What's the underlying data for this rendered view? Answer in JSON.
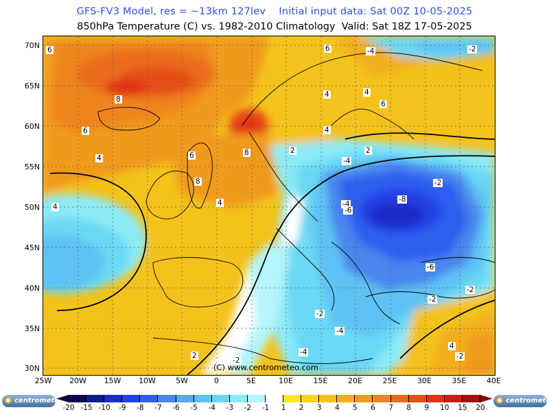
{
  "header": {
    "line1": "GFS-FV3 Model, res = ~13km 127lev    Initial input data: Sat 00Z 10-05-2025",
    "line2": "850hPa Temperature (C) vs. 1982-2010 Climatology  Valid: Sat 18Z 17-05-2025"
  },
  "axes": {
    "lat_labels": [
      "70N",
      "65N",
      "60N",
      "55N",
      "50N",
      "45N",
      "40N",
      "35N",
      "30N"
    ],
    "lon_labels": [
      "25W",
      "20W",
      "15W",
      "10W",
      "5W",
      "0",
      "5E",
      "10E",
      "15E",
      "20E",
      "25E",
      "30E",
      "35E",
      "40E"
    ]
  },
  "map": {
    "copyright": "(C) www.centrometeo.com",
    "contour_labels": [
      "6",
      "8",
      "6",
      "8",
      "6",
      "8",
      "4",
      "4",
      "4",
      "6",
      "4",
      "2",
      "2",
      "-2",
      "-4",
      "-4",
      "-2",
      "-6",
      "-8",
      "-4",
      "-6",
      "-2",
      "-2",
      "-4",
      "-2",
      "-4",
      "-2",
      "4",
      "6",
      "4",
      "-2",
      "2",
      "4"
    ]
  },
  "colorbar": {
    "ticks": [
      "-20",
      "-15",
      "-10",
      "-9",
      "-8",
      "-7",
      "-6",
      "-5",
      "-4",
      "-3",
      "-2",
      "-1",
      "1",
      "2",
      "3",
      "4",
      "5",
      "6",
      "7",
      "8",
      "9",
      "10",
      "15",
      "20"
    ],
    "colors": [
      "#0a0a4a",
      "#101a8a",
      "#1a2cc8",
      "#2040e6",
      "#2f5ef0",
      "#4a86ee",
      "#5aa6f0",
      "#5ec2f4",
      "#6ad8f4",
      "#8ceaf6",
      "#b4f4fa",
      "#ffffff",
      "#ffe81a",
      "#f8d418",
      "#f4c21c",
      "#f2ae1e",
      "#f09a1e",
      "#ee841c",
      "#ea6a1a",
      "#e64e18",
      "#e23218",
      "#cc1c14",
      "#a60e10"
    ]
  },
  "logos": {
    "left": "centrometeo",
    "right": "centrometeo"
  }
}
